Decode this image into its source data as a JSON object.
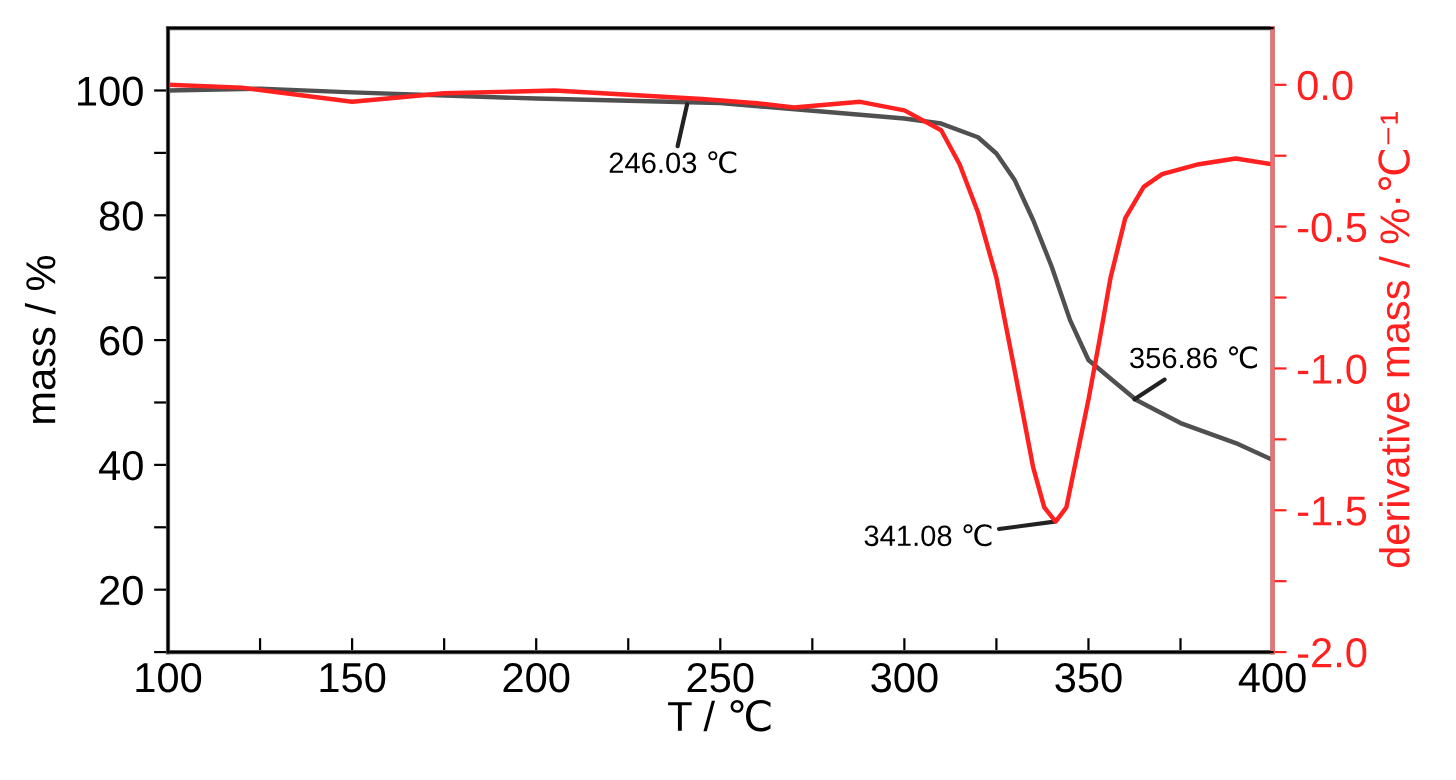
{
  "chart_data": {
    "type": "line",
    "xlabel": "T / ℃",
    "ylabel": "mass / %",
    "y2label": "derivative mass / %·℃⁻¹",
    "xlim": [
      100,
      400
    ],
    "ylim": [
      10,
      110
    ],
    "y2lim": [
      -2.0,
      0.2
    ],
    "xticks": [
      100,
      {
        "value": 125,
        "label": null
      },
      150,
      {
        "value": 175,
        "label": null
      },
      200,
      {
        "value": 225,
        "label": null
      },
      250,
      {
        "value": 275,
        "label": null
      },
      300,
      {
        "value": 325,
        "label": null
      },
      350,
      {
        "value": 375,
        "label": null
      },
      400
    ],
    "yticks": [
      {
        "value": 10,
        "label": null
      },
      20,
      {
        "value": 30,
        "label": null
      },
      40,
      {
        "value": 50,
        "label": null
      },
      60,
      {
        "value": 70,
        "label": null
      },
      80,
      {
        "value": 90,
        "label": null
      },
      100
    ],
    "y2ticks": [
      {
        "value": -2.0,
        "label": "-2.0"
      },
      {
        "value": -1.75,
        "label": null
      },
      {
        "value": -1.5,
        "label": "-1.5"
      },
      {
        "value": -1.25,
        "label": null
      },
      {
        "value": -1.0,
        "label": "-1.0"
      },
      {
        "value": -0.75,
        "label": null
      },
      {
        "value": -0.5,
        "label": "-0.5"
      },
      {
        "value": -0.25,
        "label": null
      },
      {
        "value": 0.0,
        "label": "0.0"
      }
    ],
    "grid": false,
    "legend": false,
    "marker": "none",
    "line_style": "solid",
    "series": [
      {
        "color": "#505050",
        "x": [
          100,
          125,
          150,
          200,
          250,
          280,
          300,
          310,
          320,
          325,
          330,
          335,
          340,
          345,
          350,
          356.86,
          363,
          375,
          390,
          400
        ],
        "values": [
          100,
          100.3,
          99.7,
          98.7,
          98,
          96.5,
          95.5,
          94.7,
          92.5,
          89.9,
          85.6,
          79.2,
          71.8,
          63.2,
          56.8,
          53.4,
          50.4,
          46.7,
          43.5,
          40.8
        ]
      },
      {
        "color": "#ff2020",
        "axis": "y2",
        "x": [
          100,
          120,
          150,
          175,
          205,
          245,
          260,
          270,
          288,
          300,
          310,
          315,
          320,
          325,
          330,
          335,
          338,
          341.08,
          344,
          347,
          350,
          353,
          356,
          360,
          365,
          370,
          380,
          390,
          400
        ],
        "values": [
          0,
          -0.01,
          -0.06,
          -0.03,
          -0.02,
          -0.05,
          -0.065,
          -0.08,
          -0.06,
          -0.09,
          -0.16,
          -0.28,
          -0.45,
          -0.68,
          -1.01,
          -1.35,
          -1.49,
          -1.54,
          -1.49,
          -1.3,
          -1.11,
          -0.9,
          -0.68,
          -0.47,
          -0.36,
          -0.315,
          -0.28,
          -0.26,
          -0.28
        ]
      }
    ],
    "annotations": [
      {
        "text": "246.03 ℃",
        "x": 241,
        "y": 97.8
      },
      {
        "text": "356.86 ℃",
        "x": 362.5,
        "y": 50.5
      },
      {
        "text": "341.08 ℃",
        "x": 340.8,
        "y": 30.9
      }
    ]
  }
}
